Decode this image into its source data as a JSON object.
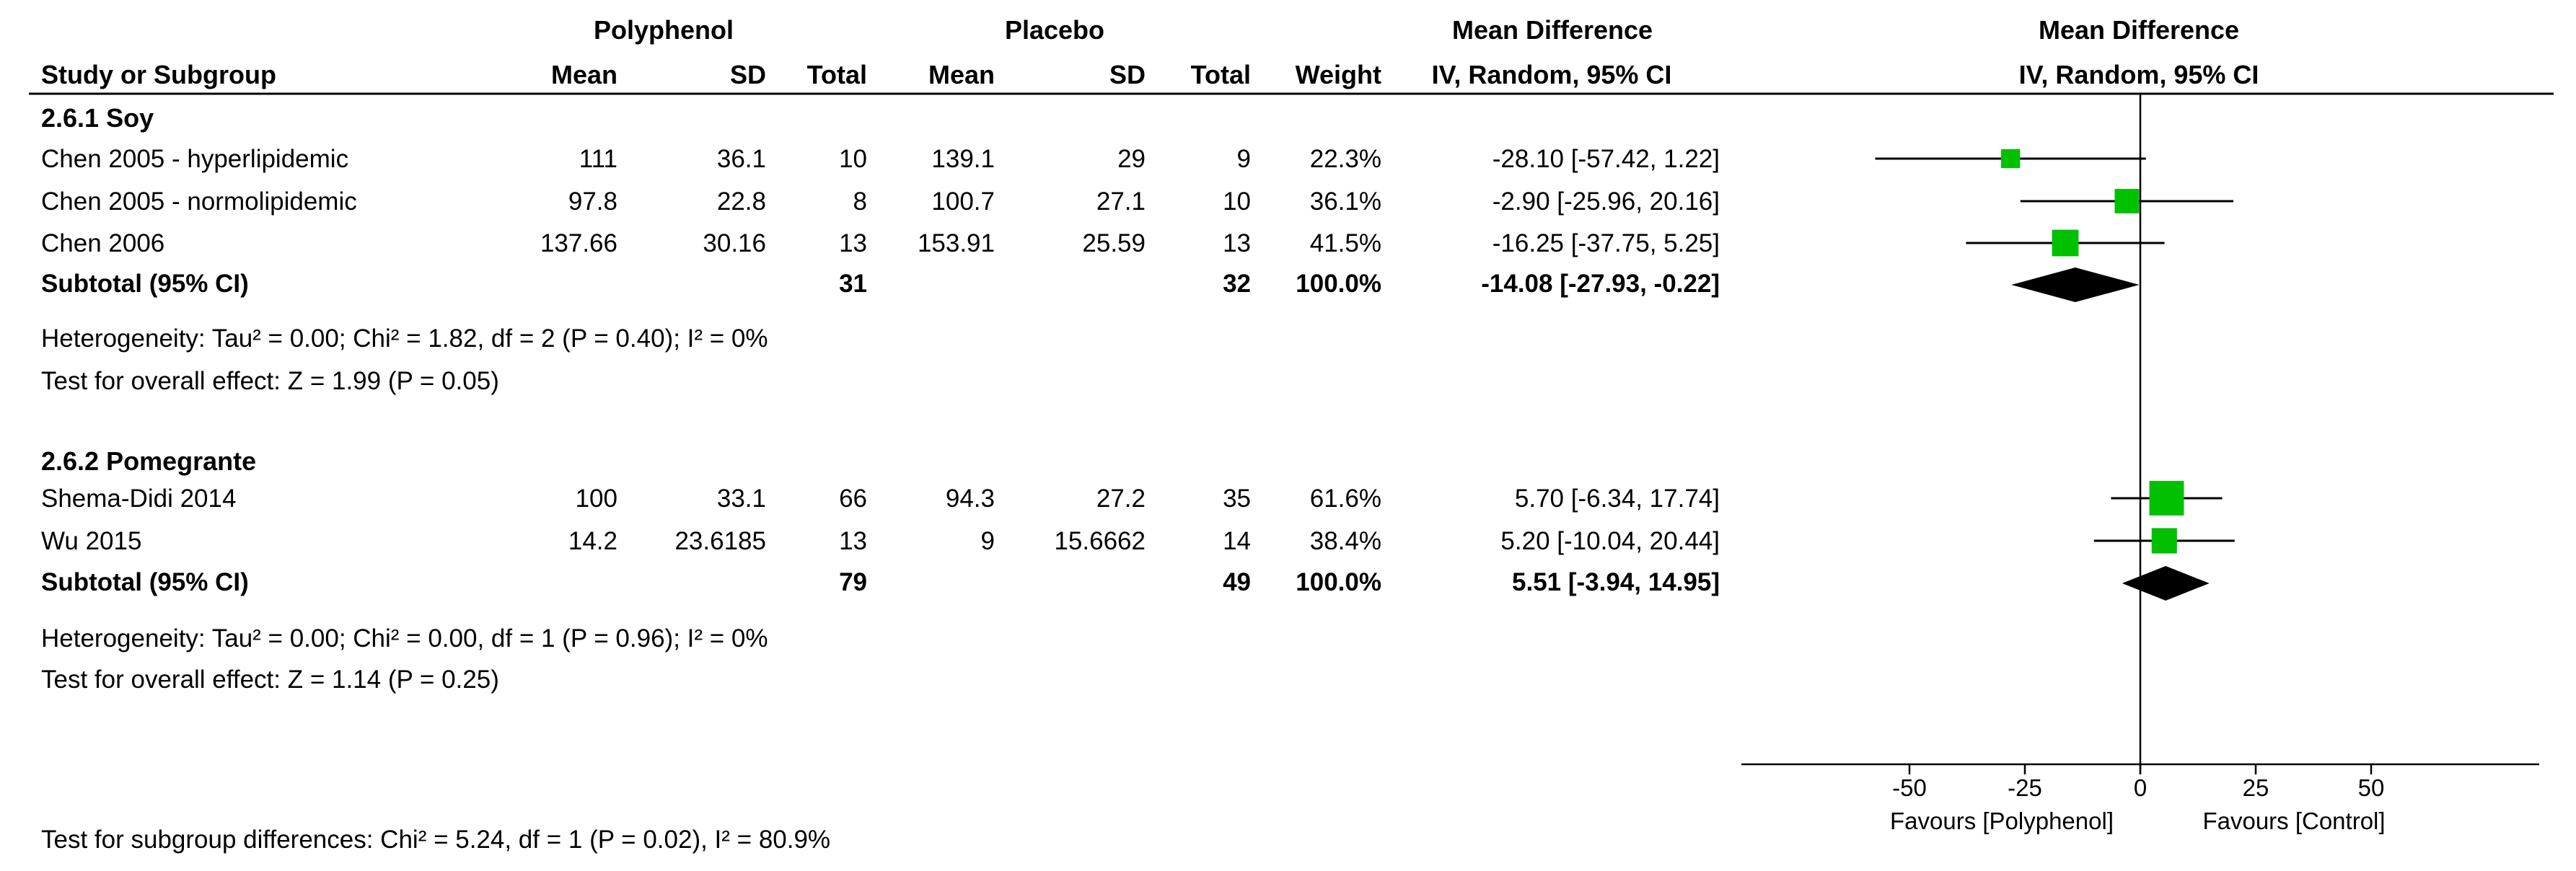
{
  "colors": {
    "square": "#00c000",
    "diamond": "#000000",
    "line": "#000000"
  },
  "header": {
    "group_polyphenol": "Polyphenol",
    "group_placebo": "Placebo",
    "md_table": "Mean Difference",
    "md_plot": "Mean Difference",
    "col_study": "Study or Subgroup",
    "col_mean": "Mean",
    "col_sd": "SD",
    "col_total": "Total",
    "col_weight": "Weight",
    "col_ci": "IV, Random, 95% CI",
    "col_ci_plot": "IV, Random, 95% CI"
  },
  "subgroups": [
    {
      "title": "2.6.1 Soy",
      "studies": [
        {
          "name": "Chen 2005 - hyperlipidemic",
          "mean1": "111",
          "sd1": "36.1",
          "n1": "10",
          "mean2": "139.1",
          "sd2": "29",
          "n2": "9",
          "weight": "22.3%",
          "ci_text": "-28.10 [-57.42, 1.22]",
          "md": -28.1,
          "lo": -57.42,
          "hi": 1.22,
          "w": 22.3
        },
        {
          "name": "Chen 2005 - normolipidemic",
          "mean1": "97.8",
          "sd1": "22.8",
          "n1": "8",
          "mean2": "100.7",
          "sd2": "27.1",
          "n2": "10",
          "weight": "36.1%",
          "ci_text": "-2.90 [-25.96, 20.16]",
          "md": -2.9,
          "lo": -25.96,
          "hi": 20.16,
          "w": 36.1
        },
        {
          "name": "Chen 2006",
          "mean1": "137.66",
          "sd1": "30.16",
          "n1": "13",
          "mean2": "153.91",
          "sd2": "25.59",
          "n2": "13",
          "weight": "41.5%",
          "ci_text": "-16.25 [-37.75, 5.25]",
          "md": -16.25,
          "lo": -37.75,
          "hi": 5.25,
          "w": 41.5
        }
      ],
      "subtotal": {
        "label": "Subtotal (95% CI)",
        "n1": "31",
        "n2": "32",
        "weight": "100.0%",
        "ci_text": "-14.08 [-27.93, -0.22]",
        "md": -14.08,
        "lo": -27.93,
        "hi": -0.22
      },
      "heterogeneity": "Heterogeneity: Tau² = 0.00; Chi² = 1.82, df = 2 (P = 0.40); I² = 0%",
      "overall": "Test for overall effect: Z = 1.99 (P = 0.05)"
    },
    {
      "title": "2.6.2 Pomegrante",
      "studies": [
        {
          "name": "Shema-Didi 2014",
          "mean1": "100",
          "sd1": "33.1",
          "n1": "66",
          "mean2": "94.3",
          "sd2": "27.2",
          "n2": "35",
          "weight": "61.6%",
          "ci_text": "5.70 [-6.34, 17.74]",
          "md": 5.7,
          "lo": -6.34,
          "hi": 17.74,
          "w": 61.6
        },
        {
          "name": "Wu 2015",
          "mean1": "14.2",
          "sd1": "23.6185",
          "n1": "13",
          "mean2": "9",
          "sd2": "15.6662",
          "n2": "14",
          "weight": "38.4%",
          "ci_text": "5.20 [-10.04, 20.44]",
          "md": 5.2,
          "lo": -10.04,
          "hi": 20.44,
          "w": 38.4
        }
      ],
      "subtotal": {
        "label": "Subtotal (95% CI)",
        "n1": "79",
        "n2": "49",
        "weight": "100.0%",
        "ci_text": "5.51 [-3.94, 14.95]",
        "md": 5.51,
        "lo": -3.94,
        "hi": 14.95
      },
      "heterogeneity": "Heterogeneity: Tau² = 0.00; Chi² = 0.00, df = 1 (P = 0.96); I² = 0%",
      "overall": "Test for overall effect: Z = 1.14 (P = 0.25)"
    }
  ],
  "footer": {
    "subgroup_test": "Test for subgroup differences: Chi² = 5.24, df = 1 (P = 0.02), I² = 80.9%"
  },
  "chart_data": {
    "type": "forest",
    "scale": "IV, Random, 95% CI",
    "xlim": [
      -100,
      100
    ],
    "ticks": [
      "-50",
      "-25",
      "0",
      "25",
      "50"
    ],
    "tick_values": [
      -50,
      -25,
      0,
      25,
      50
    ],
    "favours_left": "Favours [Polyphenol]",
    "favours_right": "Favours [Control]",
    "series": [
      {
        "name": "2.6.1 Soy",
        "studies": [
          "Chen 2005 - hyperlipidemic",
          "Chen 2005 - normolipidemic",
          "Chen 2006"
        ],
        "md": [
          -28.1,
          -2.9,
          -16.25
        ],
        "lo": [
          -57.42,
          -25.96,
          -37.75
        ],
        "hi": [
          1.22,
          20.16,
          5.25
        ],
        "pooled": {
          "md": -14.08,
          "lo": -27.93,
          "hi": -0.22
        }
      },
      {
        "name": "2.6.2 Pomegrante",
        "studies": [
          "Shema-Didi 2014",
          "Wu 2015"
        ],
        "md": [
          5.7,
          5.2
        ],
        "lo": [
          -6.34,
          -10.04
        ],
        "hi": [
          17.74,
          20.44
        ],
        "pooled": {
          "md": 5.51,
          "lo": -3.94,
          "hi": 14.95
        }
      }
    ]
  }
}
